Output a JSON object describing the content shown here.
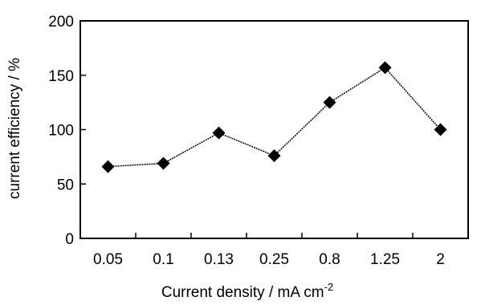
{
  "chart_data": {
    "type": "line",
    "categories": [
      "0.05",
      "0.1",
      "0.13",
      "0.25",
      "0.8",
      "1.25",
      "2"
    ],
    "series": [
      {
        "values": [
          66,
          69,
          97,
          76,
          125,
          157,
          100
        ],
        "color": "#000000",
        "marker": "diamond"
      }
    ],
    "xlabel": "Current density / mA cm",
    "xlabel_superscript": "-2",
    "ylabel": "current efficiency / %",
    "ylim": [
      0,
      200
    ],
    "yticks": [
      0,
      50,
      100,
      150,
      200
    ],
    "grid": false,
    "legend": "none"
  }
}
